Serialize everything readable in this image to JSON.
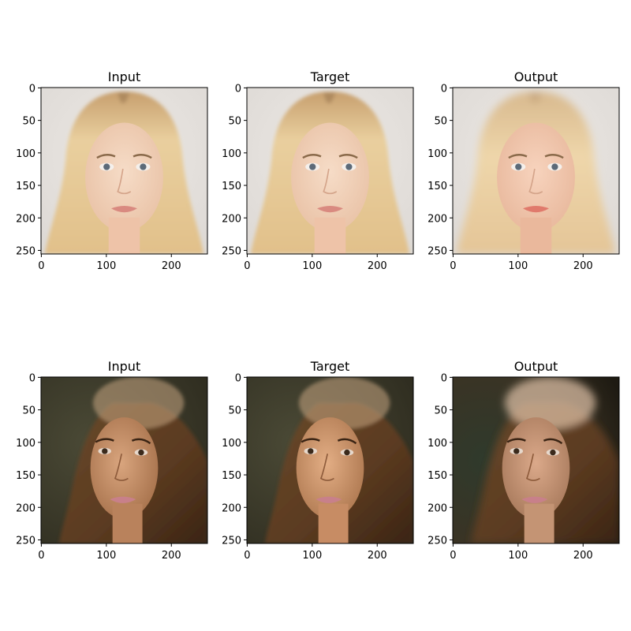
{
  "figure": {
    "panels": [
      {
        "title": "Input",
        "row": 0,
        "col": 0,
        "subject": "blonde",
        "variant": "input"
      },
      {
        "title": "Target",
        "row": 0,
        "col": 1,
        "subject": "blonde",
        "variant": "target"
      },
      {
        "title": "Output",
        "row": 0,
        "col": 2,
        "subject": "blonde",
        "variant": "output"
      },
      {
        "title": "Input",
        "row": 1,
        "col": 0,
        "subject": "brunette",
        "variant": "input"
      },
      {
        "title": "Target",
        "row": 1,
        "col": 1,
        "subject": "brunette",
        "variant": "target"
      },
      {
        "title": "Output",
        "row": 1,
        "col": 2,
        "subject": "brunette",
        "variant": "output"
      }
    ],
    "x_ticks": [
      "0",
      "100",
      "200"
    ],
    "y_ticks": [
      "0",
      "50",
      "100",
      "150",
      "200",
      "250"
    ],
    "image_extent": [
      0,
      256
    ],
    "x_tick_values": [
      0,
      100,
      200
    ],
    "y_tick_values": [
      0,
      50,
      100,
      150,
      200,
      250
    ]
  }
}
